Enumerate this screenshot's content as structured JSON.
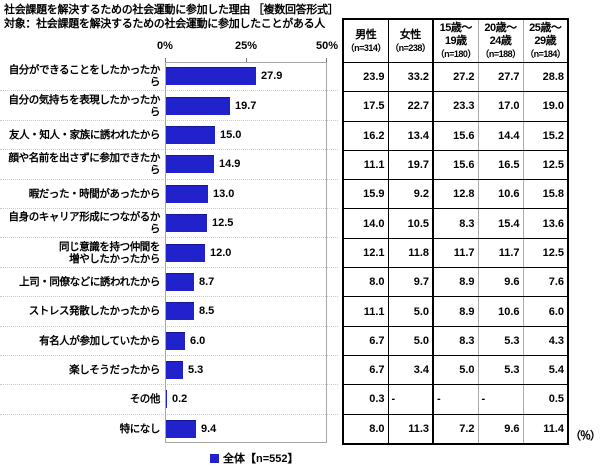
{
  "title": {
    "line1": "社会課題を解決するための社会運動に参加した理由 ［複数回答形式］",
    "line2": "対象：社会課題を解決するための社会運動に参加したことがある人"
  },
  "chart_data": {
    "type": "bar",
    "orientation": "horizontal",
    "title": "社会課題を解決するための社会運動に参加した理由",
    "xlim": [
      0,
      50
    ],
    "x_ticks": [
      "0%",
      "25%",
      "50%"
    ],
    "grid": "dotted row separators",
    "legend": "全体【n=552】",
    "legend_position": "bottom",
    "bar_color": "#2222cc",
    "categories": [
      "自分ができることをしたかったから",
      "自分の気持ちを表現したかったから",
      "友人・知人・家族に誘われたから",
      "顔や名前を出さずに参加できたから",
      "暇だった・時間があったから",
      "自身のキャリア形成につながるから",
      "同じ意識を持つ仲間を\n増やしたかったから",
      "上司・同僚などに誘われたから",
      "ストレス発散したかったから",
      "有名人が参加していたから",
      "楽しそうだったから",
      "その他",
      "特になし"
    ],
    "values": [
      27.9,
      19.7,
      15.0,
      14.9,
      13.0,
      12.5,
      12.0,
      8.7,
      8.5,
      6.0,
      5.3,
      0.2,
      9.4
    ]
  },
  "table": {
    "columns": [
      {
        "label": "男性",
        "n": "（n=314）"
      },
      {
        "label": "女性",
        "n": "（n=238）"
      },
      {
        "label": "15歳～\n19歳",
        "n": "（n=180）"
      },
      {
        "label": "20歳～\n24歳",
        "n": "（n=188）"
      },
      {
        "label": "25歳～\n29歳",
        "n": "（n=184）"
      }
    ],
    "rows": [
      [
        "23.9",
        "33.2",
        "27.2",
        "27.7",
        "28.8"
      ],
      [
        "17.5",
        "22.7",
        "23.3",
        "17.0",
        "19.0"
      ],
      [
        "16.2",
        "13.4",
        "15.6",
        "14.4",
        "15.2"
      ],
      [
        "11.1",
        "19.7",
        "15.6",
        "16.5",
        "12.5"
      ],
      [
        "15.9",
        "9.2",
        "12.8",
        "10.6",
        "15.8"
      ],
      [
        "14.0",
        "10.5",
        "8.3",
        "15.4",
        "13.6"
      ],
      [
        "12.1",
        "11.8",
        "11.7",
        "11.7",
        "12.5"
      ],
      [
        "8.0",
        "9.7",
        "8.9",
        "9.6",
        "7.6"
      ],
      [
        "11.1",
        "5.0",
        "8.9",
        "10.6",
        "6.0"
      ],
      [
        "6.7",
        "5.0",
        "8.3",
        "5.3",
        "4.3"
      ],
      [
        "6.7",
        "3.4",
        "5.0",
        "5.3",
        "5.4"
      ],
      [
        "0.3",
        "-",
        "-",
        "-",
        "0.5"
      ],
      [
        "8.0",
        "11.3",
        "7.2",
        "9.6",
        "11.4"
      ]
    ],
    "unit": "（％）"
  }
}
